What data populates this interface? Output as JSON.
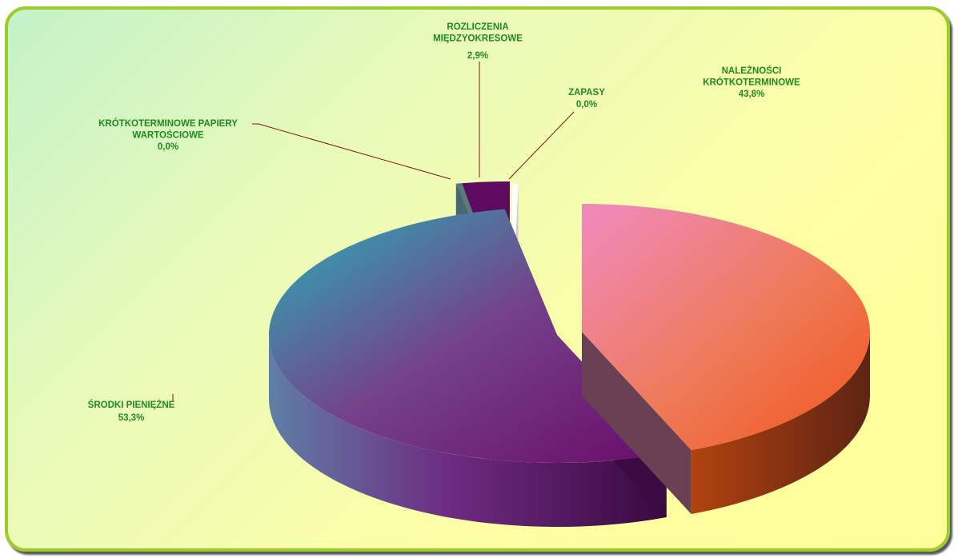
{
  "chart_data": {
    "type": "pie",
    "title": "",
    "slices": [
      {
        "label_lines": [
          "NALEŻNOŚCI",
          "KRÓTKOTERMINOWE"
        ],
        "label": "NALEŻNOŚCI KRÓTKOTERMINOWE",
        "value": 43.8,
        "value_text": "43,8%"
      },
      {
        "label_lines": [
          "ŚRODKI PIENIĘŻNE"
        ],
        "label": "ŚRODKI PIENIĘŻNE",
        "value": 53.3,
        "value_text": "53,3%"
      },
      {
        "label_lines": [
          "KRÓTKOTERMINOWE PAPIERY",
          "WARTOŚCIOWE"
        ],
        "label": "KRÓTKOTERMINOWE PAPIERY WARTOŚCIOWE",
        "value": 0.0,
        "value_text": "0,0%"
      },
      {
        "label_lines": [
          "ROZLICZENIA",
          "MIĘDZYOKRESOWE"
        ],
        "label": "ROZLICZENIA MIĘDZYOKRESOWE",
        "value": 2.9,
        "value_text": "2,9%"
      },
      {
        "label_lines": [
          "ZAPASY"
        ],
        "label": "ZAPASY",
        "value": 0.0,
        "value_text": "0,0%"
      }
    ],
    "colors": {
      "frame_border": "#9ccc2a",
      "label_text": "#1f8a1f",
      "leader_line": "#7a1a1a"
    }
  }
}
